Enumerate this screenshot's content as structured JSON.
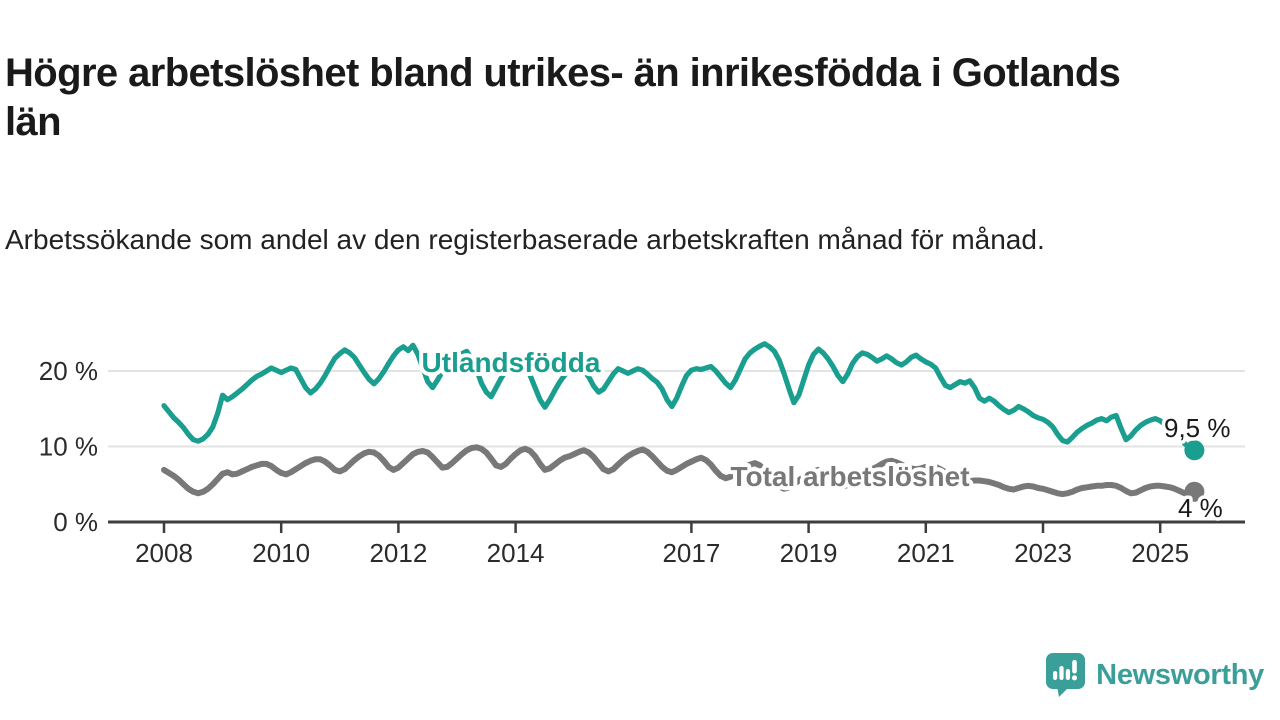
{
  "header": {
    "title": "Högre arbetslöshet bland utrikes- än inrikesfödda i Gotlands län",
    "subtitle": "Arbetssökande som andel av den registerbaserade arbetskraften månad för månad."
  },
  "branding": {
    "name": "Newsworthy",
    "icon": "speech-bubble-bar-chart-icon",
    "color": "#3a9e99"
  },
  "colors": {
    "background": "#ffffff",
    "title_text": "#1a1a1a",
    "axis_text": "#2b2b2b",
    "axis_line": "#3d3d3d",
    "gridline": "#e3e3e3",
    "series_foreign_born": "#1a9e8f",
    "series_total": "#787878",
    "label_halo": "#ffffff"
  },
  "chart_data": {
    "type": "line",
    "title": "Högre arbetslöshet bland utrikes- än inrikesfödda i Gotlands län",
    "subtitle": "Arbetssökande som andel av den registerbaserade arbetskraften månad för månad.",
    "unit": "%",
    "grid": "horizontal",
    "x_axis": {
      "start_year": 2008.0,
      "step_years": 0.0833333,
      "tick_years": [
        2008,
        2010,
        2012,
        2014,
        2017,
        2019,
        2021,
        2023,
        2025
      ],
      "tick_labels": [
        "2008",
        "2010",
        "2012",
        "2014",
        "2017",
        "2019",
        "2021",
        "2023",
        "2025"
      ]
    },
    "y_axis": {
      "range": [
        0,
        24.5
      ],
      "ticks": [
        0,
        10,
        20
      ],
      "tick_labels": [
        "0 %",
        "10 %",
        "20 %"
      ]
    },
    "series": [
      {
        "name": "Utlandsfödda",
        "color": "#1a9e8f",
        "end_label": "9,5 %",
        "end_value": 9.5,
        "values": [
          15.4,
          14.6,
          13.8,
          13.2,
          12.5,
          11.6,
          10.9,
          10.7,
          11.0,
          11.6,
          12.6,
          14.4,
          16.8,
          16.2,
          16.6,
          17.1,
          17.6,
          18.2,
          18.8,
          19.3,
          19.6,
          20.0,
          20.4,
          20.1,
          19.8,
          20.1,
          20.4,
          20.2,
          19.0,
          17.8,
          17.1,
          17.6,
          18.4,
          19.4,
          20.6,
          21.7,
          22.3,
          22.8,
          22.4,
          21.8,
          20.8,
          19.8,
          18.9,
          18.3,
          19.0,
          19.9,
          21.0,
          22.0,
          22.8,
          23.2,
          22.7,
          23.4,
          22.2,
          20.4,
          18.6,
          17.8,
          18.8,
          19.9,
          20.8,
          21.4,
          21.9,
          22.3,
          22.6,
          21.6,
          20.2,
          18.4,
          17.2,
          16.6,
          17.8,
          19.0,
          20.0,
          20.7,
          21.1,
          21.4,
          20.6,
          19.4,
          17.8,
          16.2,
          15.2,
          16.2,
          17.4,
          18.5,
          19.4,
          20.1,
          20.6,
          21.0,
          20.0,
          19.2,
          18.0,
          17.2,
          17.6,
          18.6,
          19.6,
          20.3,
          20.0,
          19.7,
          20.0,
          20.3,
          20.1,
          19.6,
          19.0,
          18.5,
          17.6,
          16.2,
          15.3,
          16.4,
          18.0,
          19.4,
          20.1,
          20.3,
          20.2,
          20.4,
          20.6,
          20.0,
          19.2,
          18.4,
          17.8,
          18.8,
          20.2,
          21.6,
          22.4,
          22.9,
          23.3,
          23.6,
          23.2,
          22.6,
          21.4,
          19.6,
          17.6,
          15.8,
          16.8,
          18.8,
          20.8,
          22.2,
          22.9,
          22.4,
          21.6,
          20.6,
          19.4,
          18.6,
          19.6,
          21.0,
          21.9,
          22.4,
          22.2,
          21.8,
          21.3,
          21.6,
          22.0,
          21.6,
          21.1,
          20.8,
          21.2,
          21.8,
          22.1,
          21.6,
          21.2,
          20.9,
          20.4,
          19.2,
          18.1,
          17.8,
          18.2,
          18.6,
          18.4,
          18.7,
          17.8,
          16.4,
          16.0,
          16.4,
          16.0,
          15.4,
          14.9,
          14.5,
          14.8,
          15.3,
          15.0,
          14.6,
          14.1,
          13.8,
          13.6,
          13.2,
          12.6,
          11.6,
          10.8,
          10.6,
          11.2,
          11.9,
          12.4,
          12.8,
          13.1,
          13.5,
          13.7,
          13.4,
          13.9,
          14.1,
          12.4,
          10.9,
          11.4,
          12.2,
          12.8,
          13.2,
          13.5,
          13.7,
          13.4,
          12.9,
          12.5,
          12.1,
          11.4,
          10.4,
          9.8,
          9.5
        ]
      },
      {
        "name": "Total arbetslöshet",
        "color": "#787878",
        "end_label": "4 %",
        "end_value": 4.0,
        "values": [
          6.9,
          6.5,
          6.1,
          5.6,
          5.0,
          4.4,
          4.0,
          3.8,
          4.0,
          4.4,
          5.0,
          5.7,
          6.4,
          6.6,
          6.3,
          6.4,
          6.7,
          7.0,
          7.3,
          7.5,
          7.7,
          7.7,
          7.4,
          6.9,
          6.5,
          6.3,
          6.6,
          7.0,
          7.4,
          7.8,
          8.1,
          8.3,
          8.3,
          8.0,
          7.5,
          6.9,
          6.7,
          7.0,
          7.6,
          8.2,
          8.7,
          9.1,
          9.3,
          9.2,
          8.8,
          8.1,
          7.3,
          6.9,
          7.2,
          7.8,
          8.4,
          9.0,
          9.3,
          9.4,
          9.2,
          8.6,
          7.9,
          7.2,
          7.3,
          7.8,
          8.4,
          9.0,
          9.5,
          9.8,
          9.9,
          9.7,
          9.2,
          8.4,
          7.5,
          7.3,
          7.7,
          8.4,
          9.0,
          9.5,
          9.7,
          9.4,
          8.7,
          7.7,
          6.9,
          7.1,
          7.6,
          8.1,
          8.5,
          8.7,
          9.0,
          9.3,
          9.5,
          9.2,
          8.6,
          7.8,
          7.0,
          6.7,
          7.0,
          7.6,
          8.2,
          8.7,
          9.1,
          9.4,
          9.6,
          9.3,
          8.7,
          8.0,
          7.3,
          6.8,
          6.6,
          6.9,
          7.3,
          7.7,
          8.0,
          8.3,
          8.5,
          8.2,
          7.6,
          6.8,
          6.1,
          5.8,
          6.0,
          6.4,
          6.9,
          7.3,
          7.6,
          7.8,
          7.5,
          6.9,
          6.1,
          5.3,
          4.7,
          4.4,
          4.6,
          5.0,
          5.5,
          6.0,
          6.4,
          6.7,
          6.9,
          6.6,
          6.1,
          5.5,
          5.0,
          4.7,
          4.9,
          5.3,
          5.8,
          6.3,
          6.7,
          7.0,
          7.3,
          7.7,
          8.0,
          8.1,
          7.9,
          7.6,
          7.3,
          7.1,
          7.0,
          7.1,
          7.3,
          7.4,
          7.3,
          7.0,
          6.6,
          6.1,
          5.7,
          5.4,
          5.3,
          5.4,
          5.5,
          5.5,
          5.4,
          5.3,
          5.1,
          4.9,
          4.6,
          4.4,
          4.3,
          4.5,
          4.7,
          4.8,
          4.7,
          4.5,
          4.4,
          4.2,
          4.0,
          3.8,
          3.7,
          3.8,
          4.0,
          4.3,
          4.5,
          4.6,
          4.7,
          4.8,
          4.8,
          4.9,
          4.9,
          4.8,
          4.5,
          4.1,
          3.8,
          3.9,
          4.2,
          4.5,
          4.7,
          4.8,
          4.8,
          4.7,
          4.6,
          4.4,
          4.1,
          3.8,
          3.7,
          4.0
        ]
      }
    ]
  }
}
